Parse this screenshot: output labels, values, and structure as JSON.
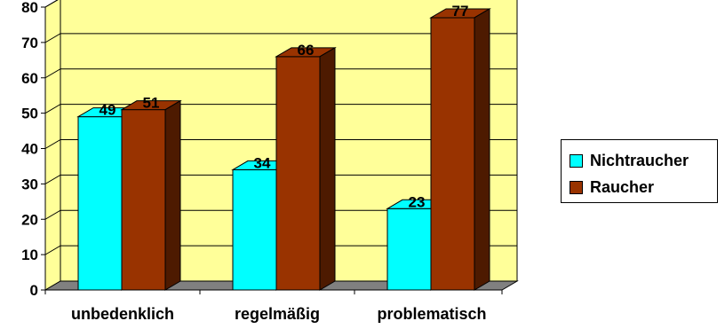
{
  "chart_data": {
    "type": "bar",
    "three_d": true,
    "categories": [
      "unbedenklich",
      "regelmäßig",
      "problematisch"
    ],
    "series": [
      {
        "name": "Nichtraucher",
        "values": [
          49,
          34,
          23
        ],
        "color": "#00FFFF",
        "side_color": "#008080"
      },
      {
        "name": "Raucher",
        "values": [
          51,
          66,
          77
        ],
        "color": "#993300",
        "side_color": "#4D1A00"
      }
    ],
    "ylim": [
      0,
      80
    ],
    "yticks": [
      0,
      10,
      20,
      30,
      40,
      50,
      60,
      70,
      80
    ],
    "grid": true,
    "wall_color": "#FFFF99",
    "floor_color": "#808080",
    "legend_position": "right"
  }
}
